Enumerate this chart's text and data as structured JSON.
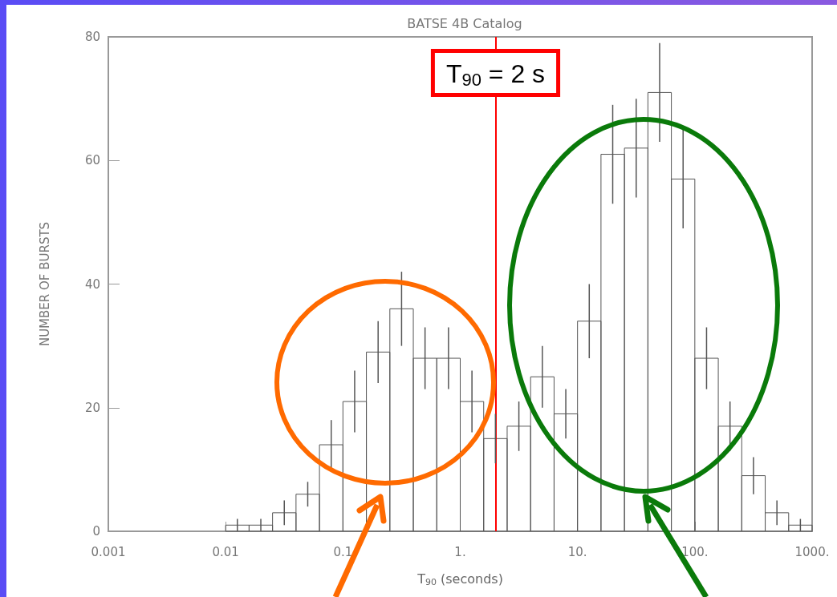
{
  "chart_data": {
    "type": "histogram",
    "title": "BATSE 4B Catalog",
    "xlabel": "T$_{90}$ (seconds)",
    "ylabel": "NUMBER OF BURSTS",
    "color": "#555555",
    "bins": [
      0.01,
      0.01585,
      0.02512,
      0.03981,
      0.0631,
      0.1,
      0.1585,
      0.2512,
      0.3981,
      0.631,
      1,
      1.585,
      2.512,
      3.981,
      6.31,
      10,
      15.85,
      25.12,
      39.81,
      63.1,
      100,
      158.5,
      251.2,
      398.1,
      631,
      1000
    ],
    "values": [
      1,
      1,
      3,
      6,
      14,
      21,
      29,
      36,
      28,
      28,
      21,
      15,
      17,
      25,
      19,
      34,
      61,
      62,
      71,
      57,
      28,
      17,
      9,
      3,
      1
    ],
    "errors": [
      1,
      1,
      2,
      2,
      4,
      5,
      5,
      6,
      5,
      5,
      5,
      4,
      4,
      5,
      4,
      6,
      8,
      8,
      8,
      8,
      5,
      4,
      3,
      2,
      1
    ],
    "log": "x",
    "xlim": [
      0.001,
      1000
    ],
    "xticks": [
      0.001,
      0.01,
      0.1,
      {
        "value": 1,
        "label": "1."
      },
      {
        "value": 10,
        "label": "10."
      },
      {
        "value": 100,
        "label": "100."
      },
      {
        "value": 1000,
        "label": "1000."
      }
    ],
    "ylim": [
      0,
      80
    ],
    "yticks": [
      0,
      20,
      40,
      60,
      80
    ],
    "grid": false,
    "ref_lines": [
      {
        "axis": "x",
        "value": 2,
        "label": "T$_{90}$ = 2 s",
        "color": "#ff0000"
      }
    ]
  }
}
